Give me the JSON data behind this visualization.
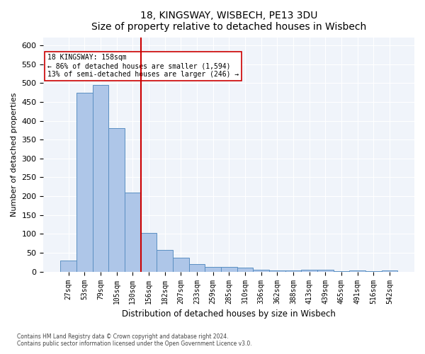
{
  "title": "18, KINGSWAY, WISBECH, PE13 3DU",
  "subtitle": "Size of property relative to detached houses in Wisbech",
  "xlabel": "Distribution of detached houses by size in Wisbech",
  "ylabel": "Number of detached properties",
  "categories": [
    "27sqm",
    "53sqm",
    "79sqm",
    "105sqm",
    "130sqm",
    "156sqm",
    "182sqm",
    "207sqm",
    "233sqm",
    "259sqm",
    "285sqm",
    "310sqm",
    "336sqm",
    "362sqm",
    "388sqm",
    "413sqm",
    "439sqm",
    "465sqm",
    "491sqm",
    "516sqm",
    "542sqm"
  ],
  "values": [
    30,
    475,
    495,
    380,
    210,
    103,
    57,
    37,
    20,
    13,
    13,
    10,
    5,
    4,
    3,
    5,
    5,
    2,
    3,
    1,
    4
  ],
  "bar_color": "#aec6e8",
  "bar_edge_color": "#5a8fc2",
  "vline_color": "#cc0000",
  "annotation_title": "18 KINGSWAY: 158sqm",
  "annotation_line1": "← 86% of detached houses are smaller (1,594)",
  "annotation_line2": "13% of semi-detached houses are larger (246) →",
  "annotation_box_color": "#ffffff",
  "annotation_box_edge": "#cc0000",
  "footer_line1": "Contains HM Land Registry data © Crown copyright and database right 2024.",
  "footer_line2": "Contains public sector information licensed under the Open Government Licence v3.0.",
  "background_color": "#f0f4fa",
  "ylim": [
    0,
    620
  ],
  "yticks": [
    0,
    50,
    100,
    150,
    200,
    250,
    300,
    350,
    400,
    450,
    500,
    550,
    600
  ]
}
